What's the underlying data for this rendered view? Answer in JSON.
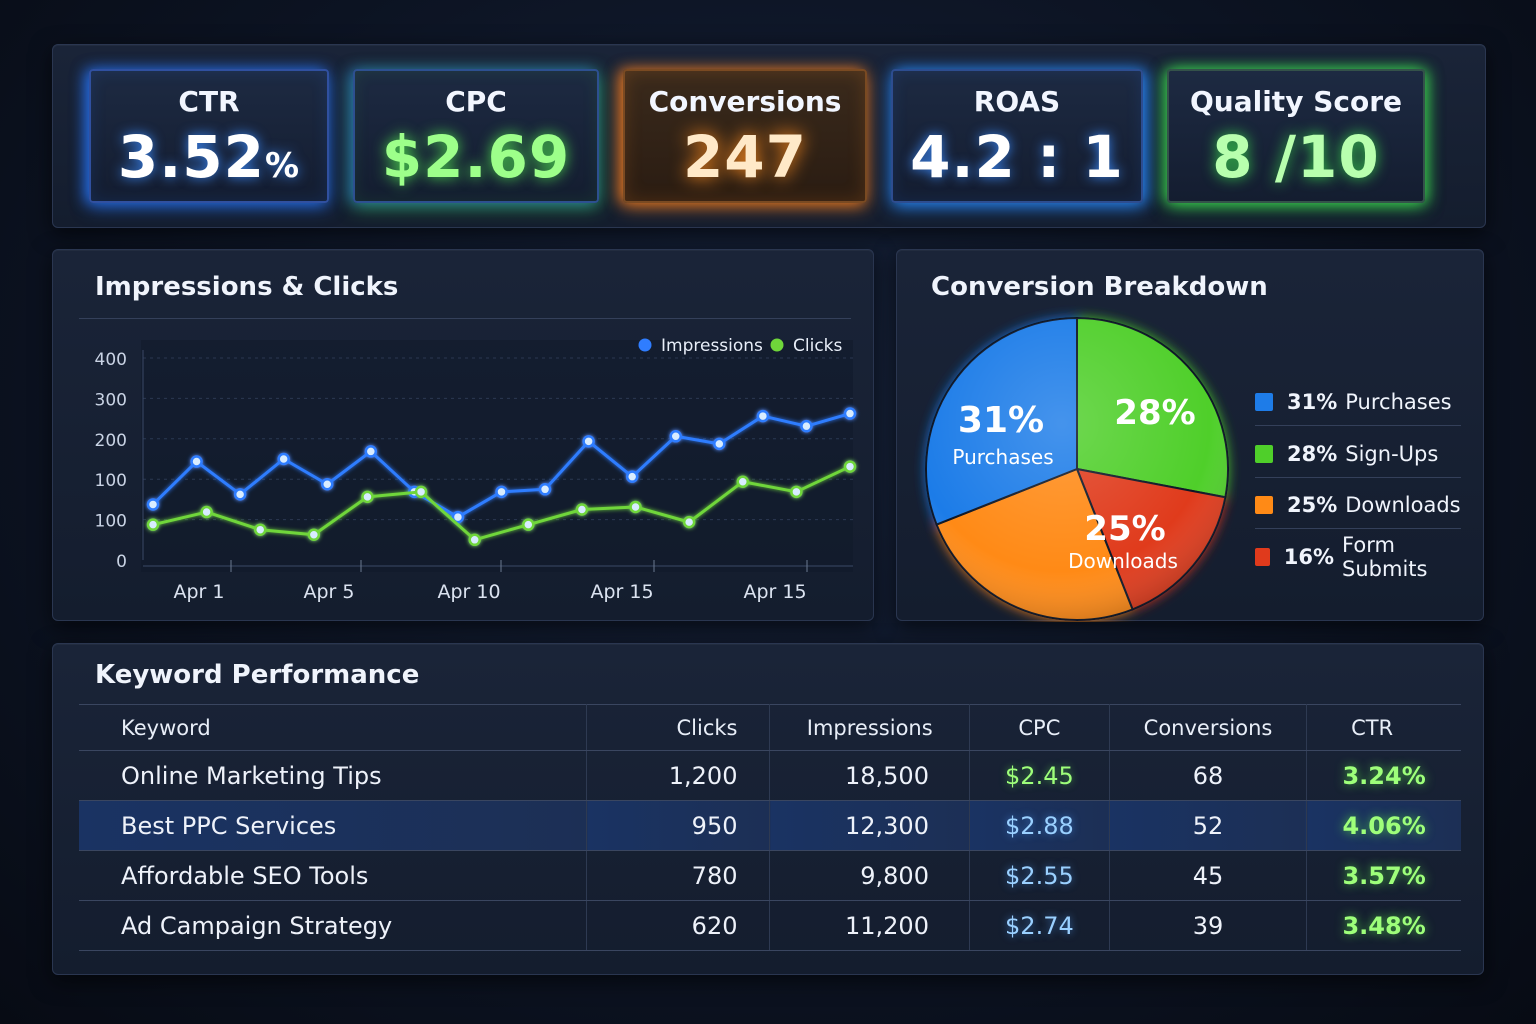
{
  "kpis": {
    "ctr": {
      "label": "CTR",
      "value": "3.52",
      "unit": "%"
    },
    "cpc": {
      "label": "CPC",
      "value": "$2.69"
    },
    "conversions": {
      "label": "Conversions",
      "value": "247"
    },
    "roas": {
      "label": "ROAS",
      "value": "4.2 : 1"
    },
    "quality": {
      "label": "Quality Score",
      "value": "8 /10"
    }
  },
  "line_panel": {
    "title": "Impressions & Clicks"
  },
  "pie_panel": {
    "title": "Conversion Breakdown"
  },
  "chart_data": [
    {
      "type": "line",
      "title": "Impressions & Clicks",
      "y_tick_labels": [
        "0",
        "100",
        "100",
        "200",
        "300",
        "400"
      ],
      "x_tick_labels": [
        "Apr 1",
        "Apr 5",
        "Apr 10",
        "Apr 15",
        "Apr 15"
      ],
      "ylim": [
        0,
        400
      ],
      "grid": true,
      "legend": "top-right",
      "series": [
        {
          "name": "Impressions",
          "color": "#2f7dff",
          "values": [
            110,
            195,
            130,
            200,
            150,
            215,
            135,
            85,
            135,
            140,
            235,
            165,
            245,
            230,
            285,
            265,
            290
          ]
        },
        {
          "name": "Clicks",
          "color": "#6fd63a",
          "values": [
            70,
            95,
            60,
            50,
            125,
            135,
            40,
            70,
            100,
            105,
            75,
            155,
            135,
            185
          ]
        }
      ]
    },
    {
      "type": "pie",
      "title": "Conversion Breakdown",
      "slices": [
        {
          "label": "Purchases",
          "value": 31,
          "color": "#1e7ce8"
        },
        {
          "label": "Sign-Ups",
          "value": 28,
          "color": "#4fcf2a"
        },
        {
          "label": "Downloads",
          "value": 25,
          "color": "#ff8a16"
        },
        {
          "label": "Form Submits",
          "value": 16,
          "color": "#e03a1c"
        }
      ],
      "slice_labels": {
        "purchases_pct": "31%",
        "purchases_name": "Purchases",
        "signups_pct": "28%",
        "downloads_pct": "25%",
        "downloads_name": "Downloads"
      },
      "legend": "right"
    }
  ],
  "pie_legend": [
    {
      "pct": "31%",
      "label": "Purchases",
      "color": "#1e7ce8"
    },
    {
      "pct": "28%",
      "label": "Sign-Ups",
      "color": "#4fcf2a"
    },
    {
      "pct": "25%",
      "label": "Downloads",
      "color": "#ff8a16"
    },
    {
      "pct": "16%",
      "label": "Form Submits",
      "color": "#e03a1c"
    }
  ],
  "keywords": {
    "title": "Keyword Performance",
    "headers": [
      "Keyword",
      "Clicks",
      "Impressions",
      "CPC",
      "Conversions",
      "CTR"
    ],
    "rows": [
      [
        "Online Marketing Tips",
        "1,200",
        "18,500",
        "$2.45",
        "68",
        "3.24%"
      ],
      [
        "Best PPC Services",
        "950",
        "12,300",
        "$2.88",
        "52",
        "4.06%"
      ],
      [
        "Affordable SEO Tools",
        "780",
        "9,800",
        "$2.55",
        "45",
        "3.57%"
      ],
      [
        "Ad Campaign Strategy",
        "620",
        "11,200",
        "$2.74",
        "39",
        "3.48%"
      ]
    ]
  }
}
